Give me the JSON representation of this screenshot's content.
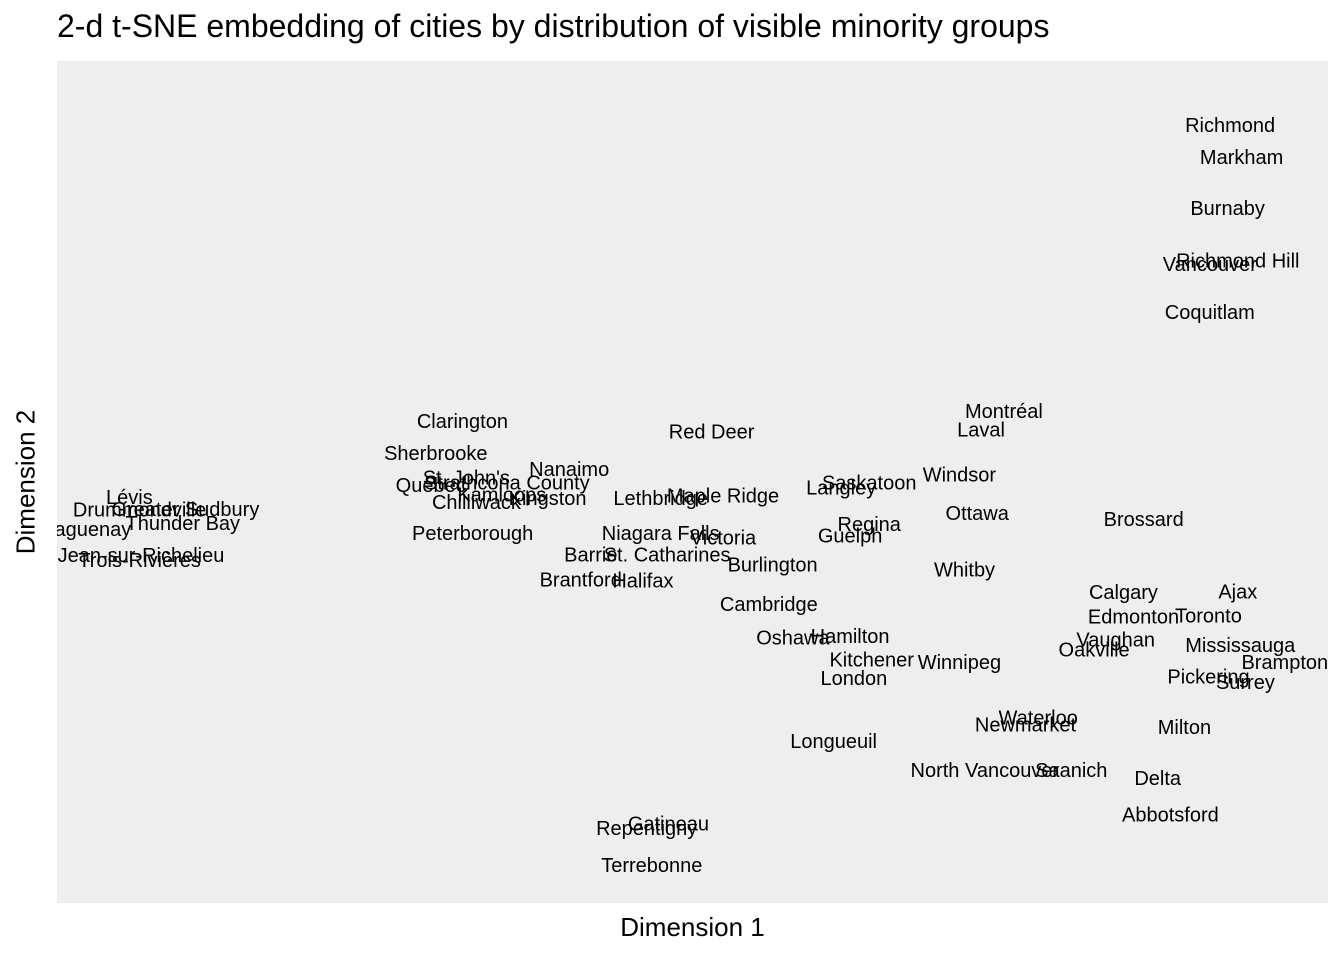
{
  "chart_data": {
    "type": "scatter",
    "title": "2-d t-SNE embedding of cities by distribution of visible minority groups",
    "xlabel": "Dimension 1",
    "ylabel": "Dimension 2",
    "xlim": [
      0,
      100
    ],
    "ylim": [
      0,
      100
    ],
    "grid": false,
    "panel_background": "#EEEEEE",
    "text_color": "#000000",
    "points": [
      {
        "label": "Richmond",
        "x": 92.3,
        "y": 92.3
      },
      {
        "label": "Markham",
        "x": 93.2,
        "y": 88.5
      },
      {
        "label": "Burnaby",
        "x": 92.1,
        "y": 82.4
      },
      {
        "label": "Richmond Hill",
        "x": 92.9,
        "y": 76.2
      },
      {
        "label": "Vancouver",
        "x": 90.7,
        "y": 75.8
      },
      {
        "label": "Coquitlam",
        "x": 90.7,
        "y": 70.1
      },
      {
        "label": "Montréal",
        "x": 74.5,
        "y": 58.3
      },
      {
        "label": "Laval",
        "x": 72.7,
        "y": 56.1
      },
      {
        "label": "Red Deer",
        "x": 51.5,
        "y": 55.9
      },
      {
        "label": "Clarington",
        "x": 31.9,
        "y": 57.1
      },
      {
        "label": "Sherbrooke",
        "x": 29.8,
        "y": 53.3
      },
      {
        "label": "Nanaimo",
        "x": 40.3,
        "y": 51.4
      },
      {
        "label": "St. John's",
        "x": 32.2,
        "y": 50.4
      },
      {
        "label": "Strathcona County",
        "x": 35.4,
        "y": 49.8
      },
      {
        "label": "Québec",
        "x": 29.4,
        "y": 49.5
      },
      {
        "label": "Kamloops",
        "x": 35.0,
        "y": 48.4
      },
      {
        "label": "Kingston",
        "x": 38.6,
        "y": 48.0
      },
      {
        "label": "Chilliwack",
        "x": 33.0,
        "y": 47.5
      },
      {
        "label": "Lethbridge",
        "x": 47.5,
        "y": 48.0
      },
      {
        "label": "Maple Ridge",
        "x": 52.4,
        "y": 48.3
      },
      {
        "label": "Langley",
        "x": 61.7,
        "y": 49.2
      },
      {
        "label": "Saskatoon",
        "x": 63.9,
        "y": 49.8
      },
      {
        "label": "Windsor",
        "x": 71.0,
        "y": 50.8
      },
      {
        "label": "Ottawa",
        "x": 72.4,
        "y": 46.2
      },
      {
        "label": "Brossard",
        "x": 85.5,
        "y": 45.5
      },
      {
        "label": "Regina",
        "x": 63.9,
        "y": 44.9
      },
      {
        "label": "Guelph",
        "x": 62.4,
        "y": 43.5
      },
      {
        "label": "Niagara Falls",
        "x": 47.5,
        "y": 43.8
      },
      {
        "label": "Victoria",
        "x": 52.4,
        "y": 43.3
      },
      {
        "label": "Peterborough",
        "x": 32.7,
        "y": 43.8
      },
      {
        "label": "Barrie",
        "x": 42.0,
        "y": 41.3
      },
      {
        "label": "St. Catharines",
        "x": 48.0,
        "y": 41.3
      },
      {
        "label": "Burlington",
        "x": 56.3,
        "y": 40.1
      },
      {
        "label": "Whitby",
        "x": 71.4,
        "y": 39.5
      },
      {
        "label": "Brantford",
        "x": 41.2,
        "y": 38.3
      },
      {
        "label": "Halifax",
        "x": 46.1,
        "y": 38.2
      },
      {
        "label": "Calgary",
        "x": 83.9,
        "y": 36.8
      },
      {
        "label": "Ajax",
        "x": 92.9,
        "y": 36.9
      },
      {
        "label": "Cambridge",
        "x": 56.0,
        "y": 35.4
      },
      {
        "label": "Edmonton",
        "x": 84.7,
        "y": 33.9
      },
      {
        "label": "Toronto",
        "x": 90.6,
        "y": 34.0
      },
      {
        "label": "Hamilton",
        "x": 62.4,
        "y": 31.6
      },
      {
        "label": "Oshawa",
        "x": 57.9,
        "y": 31.4
      },
      {
        "label": "Vaughan",
        "x": 83.3,
        "y": 31.2
      },
      {
        "label": "Oakville",
        "x": 81.6,
        "y": 30.0
      },
      {
        "label": "Mississauga",
        "x": 93.1,
        "y": 30.5
      },
      {
        "label": "Brampton",
        "x": 96.6,
        "y": 28.5
      },
      {
        "label": "Kitchener",
        "x": 64.1,
        "y": 28.8
      },
      {
        "label": "Winnipeg",
        "x": 71.0,
        "y": 28.5
      },
      {
        "label": "London",
        "x": 62.7,
        "y": 26.6
      },
      {
        "label": "Pickering",
        "x": 90.6,
        "y": 26.8
      },
      {
        "label": "Surrey",
        "x": 93.5,
        "y": 26.1
      },
      {
        "label": "Waterloo",
        "x": 77.2,
        "y": 21.9
      },
      {
        "label": "Newmarket",
        "x": 76.2,
        "y": 21.1
      },
      {
        "label": "Milton",
        "x": 88.7,
        "y": 20.8
      },
      {
        "label": "Longueuil",
        "x": 61.1,
        "y": 19.1
      },
      {
        "label": "North Vancouver",
        "x": 73.0,
        "y": 15.7
      },
      {
        "label": "Saanich",
        "x": 79.8,
        "y": 15.7
      },
      {
        "label": "Delta",
        "x": 86.6,
        "y": 14.7
      },
      {
        "label": "Abbotsford",
        "x": 87.6,
        "y": 10.4
      },
      {
        "label": "Gatineau",
        "x": 48.1,
        "y": 9.3
      },
      {
        "label": "Repentigny",
        "x": 46.4,
        "y": 8.8
      },
      {
        "label": "Terrebonne",
        "x": 46.8,
        "y": 4.4
      },
      {
        "label": "Lévis",
        "x": 5.7,
        "y": 48.1
      },
      {
        "label": "Drummondville",
        "x": 6.5,
        "y": 46.6
      },
      {
        "label": "Greater Sudbury",
        "x": 10.1,
        "y": 46.7
      },
      {
        "label": "Thunder Bay",
        "x": 9.9,
        "y": 45.0
      },
      {
        "label": "Saguenay",
        "x": 2.3,
        "y": 44.3
      },
      {
        "label": "St-Jean-sur-Richelieu",
        "x": 5.6,
        "y": 41.2
      },
      {
        "label": "Trois-Rivières",
        "x": 6.5,
        "y": 40.6
      }
    ]
  }
}
